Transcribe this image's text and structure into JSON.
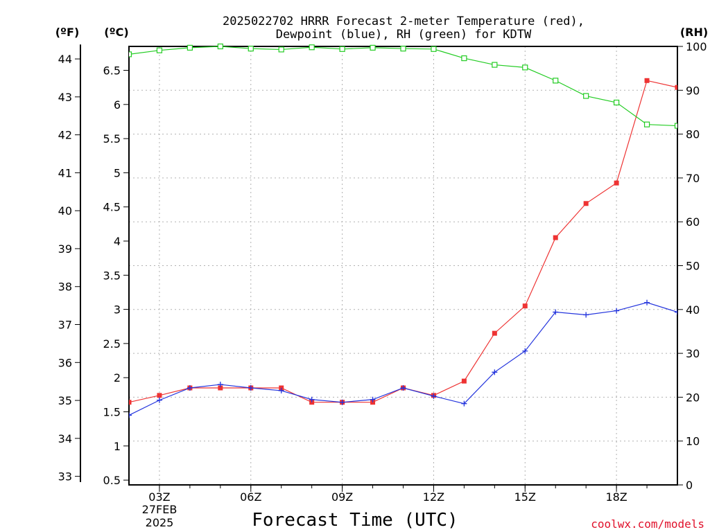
{
  "chart_data": {
    "type": "line",
    "title_line1": "2025022702 HRRR Forecast 2-meter Temperature (red),",
    "title_line2": "Dewpoint (blue), RH (green) for KDTW",
    "xlabel": "Forecast Time (UTC)",
    "credit": "coolwx.com/models",
    "unit_left_f": "(ºF)",
    "unit_left_c": "(ºC)",
    "unit_right": "(RH)",
    "date_label_day": "27FEB",
    "date_label_year": "2025",
    "x_hours": [
      2,
      3,
      4,
      5,
      6,
      7,
      8,
      9,
      10,
      11,
      12,
      13,
      14,
      15,
      16,
      17,
      18,
      19,
      20
    ],
    "xlim": [
      2,
      20
    ],
    "x_ticks": [
      {
        "hour": 3,
        "label": "03Z"
      },
      {
        "hour": 6,
        "label": "06Z"
      },
      {
        "hour": 9,
        "label": "09Z"
      },
      {
        "hour": 12,
        "label": "12Z"
      },
      {
        "hour": 15,
        "label": "15Z"
      },
      {
        "hour": 18,
        "label": "18Z"
      }
    ],
    "y_celsius": {
      "ylim": [
        0.43,
        6.85
      ],
      "ticks": [
        0.5,
        1,
        1.5,
        2,
        2.5,
        3,
        3.5,
        4,
        4.5,
        5,
        5.5,
        6,
        6.5
      ],
      "tick_labels": [
        "0.5",
        "1",
        "1.5",
        "2",
        "2.5",
        "3",
        "3.5",
        "4",
        "4.5",
        "5",
        "5.5",
        "6",
        "6.5"
      ]
    },
    "y_fahrenheit": {
      "ticks": [
        33,
        34,
        35,
        36,
        37,
        38,
        39,
        40,
        41,
        42,
        43,
        44
      ],
      "tick_labels": [
        "33",
        "34",
        "35",
        "36",
        "37",
        "38",
        "39",
        "40",
        "41",
        "42",
        "43",
        "44"
      ]
    },
    "y_rh": {
      "ylim": [
        0,
        100
      ],
      "ticks": [
        0,
        10,
        20,
        30,
        40,
        50,
        60,
        70,
        80,
        90,
        100
      ],
      "tick_labels": [
        "0",
        "10",
        "20",
        "30",
        "40",
        "50",
        "60",
        "70",
        "80",
        "90",
        "100"
      ]
    },
    "grid": true,
    "series": [
      {
        "name": "Temperature",
        "axis": "celsius",
        "color": "#ee3333",
        "marker": "filled-square",
        "values": [
          1.64,
          1.74,
          1.85,
          1.85,
          1.85,
          1.85,
          1.64,
          1.64,
          1.64,
          1.85,
          1.74,
          1.95,
          2.65,
          3.05,
          4.05,
          4.55,
          4.85,
          6.35,
          6.25
        ]
      },
      {
        "name": "Dewpoint",
        "axis": "celsius",
        "color": "#2233dd",
        "marker": "plus",
        "values": [
          1.45,
          1.67,
          1.85,
          1.9,
          1.85,
          1.81,
          1.68,
          1.64,
          1.68,
          1.85,
          1.73,
          1.62,
          2.08,
          2.39,
          2.96,
          2.92,
          2.98,
          3.1,
          2.96
        ]
      },
      {
        "name": "RH",
        "axis": "rh",
        "color": "#22cc22",
        "marker": "open-square",
        "values": [
          98.2,
          99.1,
          99.7,
          100,
          99.5,
          99.3,
          99.8,
          99.4,
          99.7,
          99.5,
          99.4,
          97.3,
          95.8,
          95.2,
          92.2,
          88.7,
          87.2,
          82.2,
          81.9
        ]
      }
    ]
  }
}
